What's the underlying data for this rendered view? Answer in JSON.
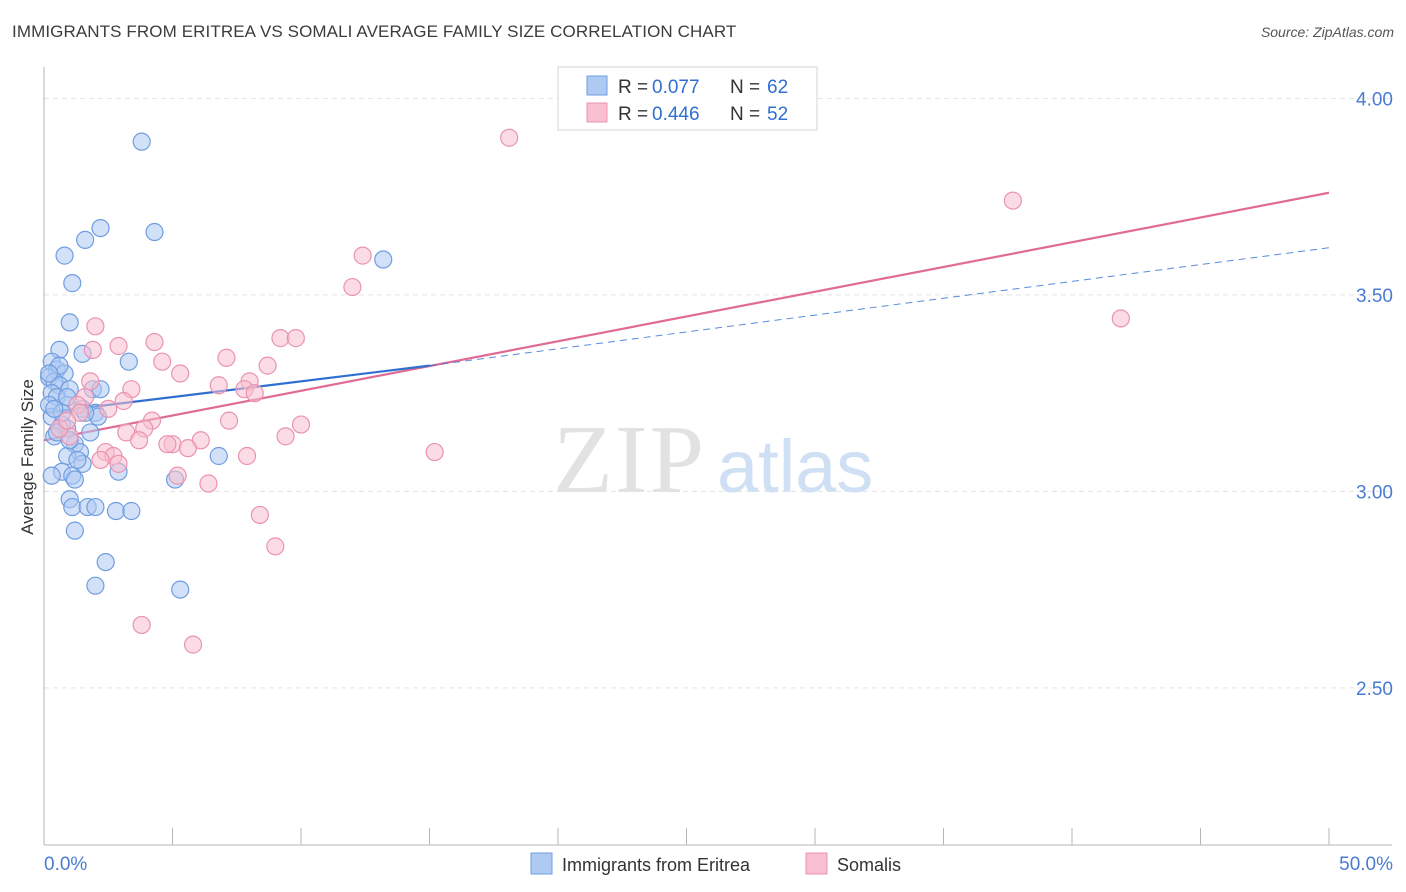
{
  "title": "IMMIGRANTS FROM ERITREA VS SOMALI AVERAGE FAMILY SIZE CORRELATION CHART",
  "source": "Source: ZipAtlas.com",
  "watermark": {
    "zip": "ZIP",
    "atlas": "atlas"
  },
  "colors": {
    "blue_fill": "#aec9f2",
    "blue_stroke": "#6f9ee0",
    "blue_line": "#2f6fd1",
    "pink_fill": "#f7bfd0",
    "pink_stroke": "#ea93b0",
    "pink_line": "#e06b93",
    "value_text": "#2f6fd1",
    "grid": "#e3e3e3"
  },
  "legend": [
    {
      "r_label": "R = ",
      "r_value": "0.077",
      "n_label": "N = ",
      "n_value": "62"
    },
    {
      "r_label": "R = ",
      "r_value": "0.446",
      "n_label": "N = ",
      "n_value": "52"
    }
  ],
  "chart_data": {
    "type": "scatter",
    "title": "IMMIGRANTS FROM ERITREA VS SOMALI AVERAGE FAMILY SIZE CORRELATION CHART",
    "xlabel": "",
    "ylabel": "Average Family Size",
    "xlim": [
      0,
      50
    ],
    "ylim": [
      2.1,
      4.08
    ],
    "x_tick_labels": [
      "0.0%",
      "50.0%"
    ],
    "y_ticks": [
      2.5,
      3.0,
      3.5,
      4.0
    ],
    "y_tick_labels": [
      "2.50",
      "3.00",
      "3.50",
      "4.00"
    ],
    "grid": true,
    "legend_position": "top-center",
    "series": [
      {
        "name": "Immigrants from Eritrea",
        "color": "blue",
        "trend": {
          "x": [
            0.0,
            15.0
          ],
          "y": [
            3.2,
            3.32
          ],
          "extension": {
            "x": [
              15.0,
              50.0
            ],
            "y": [
              3.32,
              3.62
            ]
          }
        },
        "points": [
          [
            3.8,
            3.89
          ],
          [
            4.3,
            3.66
          ],
          [
            2.2,
            3.67
          ],
          [
            1.6,
            3.64
          ],
          [
            0.8,
            3.6
          ],
          [
            13.2,
            3.59
          ],
          [
            1.1,
            3.53
          ],
          [
            1.0,
            3.43
          ],
          [
            0.6,
            3.36
          ],
          [
            1.5,
            3.35
          ],
          [
            0.3,
            3.33
          ],
          [
            3.3,
            3.33
          ],
          [
            0.5,
            3.31
          ],
          [
            0.8,
            3.3
          ],
          [
            0.2,
            3.29
          ],
          [
            0.4,
            3.28
          ],
          [
            0.6,
            3.27
          ],
          [
            1.0,
            3.26
          ],
          [
            1.9,
            3.26
          ],
          [
            0.3,
            3.25
          ],
          [
            0.5,
            3.24
          ],
          [
            0.2,
            3.22
          ],
          [
            0.9,
            3.22
          ],
          [
            1.5,
            3.21
          ],
          [
            2.0,
            3.2
          ],
          [
            0.3,
            3.19
          ],
          [
            2.1,
            3.19
          ],
          [
            0.7,
            3.17
          ],
          [
            0.9,
            3.16
          ],
          [
            1.8,
            3.15
          ],
          [
            0.4,
            3.14
          ],
          [
            1.2,
            3.12
          ],
          [
            1.4,
            3.1
          ],
          [
            0.9,
            3.09
          ],
          [
            1.5,
            3.07
          ],
          [
            6.8,
            3.09
          ],
          [
            0.7,
            3.05
          ],
          [
            2.9,
            3.05
          ],
          [
            1.1,
            3.04
          ],
          [
            0.3,
            3.04
          ],
          [
            5.1,
            3.03
          ],
          [
            1.2,
            3.03
          ],
          [
            1.0,
            2.98
          ],
          [
            1.1,
            2.96
          ],
          [
            1.7,
            2.96
          ],
          [
            2.0,
            2.96
          ],
          [
            2.8,
            2.95
          ],
          [
            3.4,
            2.95
          ],
          [
            1.2,
            2.9
          ],
          [
            2.4,
            2.82
          ],
          [
            2.0,
            2.76
          ],
          [
            5.3,
            2.75
          ],
          [
            0.6,
            3.32
          ],
          [
            0.2,
            3.3
          ],
          [
            0.7,
            3.2
          ],
          [
            1.3,
            3.08
          ],
          [
            0.5,
            3.15
          ],
          [
            0.9,
            3.24
          ],
          [
            1.6,
            3.2
          ],
          [
            2.2,
            3.26
          ],
          [
            0.4,
            3.21
          ],
          [
            1.0,
            3.13
          ]
        ]
      },
      {
        "name": "Somalis",
        "color": "pink",
        "trend": {
          "x": [
            0.0,
            50.0
          ],
          "y": [
            3.13,
            3.76
          ]
        },
        "points": [
          [
            18.1,
            3.9
          ],
          [
            37.7,
            3.74
          ],
          [
            12.4,
            3.6
          ],
          [
            12.0,
            3.52
          ],
          [
            41.9,
            3.44
          ],
          [
            2.0,
            3.42
          ],
          [
            9.2,
            3.39
          ],
          [
            9.8,
            3.39
          ],
          [
            4.3,
            3.38
          ],
          [
            2.9,
            3.37
          ],
          [
            1.9,
            3.36
          ],
          [
            7.1,
            3.34
          ],
          [
            4.6,
            3.33
          ],
          [
            8.7,
            3.32
          ],
          [
            5.3,
            3.3
          ],
          [
            8.0,
            3.28
          ],
          [
            3.4,
            3.26
          ],
          [
            7.8,
            3.26
          ],
          [
            8.2,
            3.25
          ],
          [
            1.6,
            3.24
          ],
          [
            3.1,
            3.23
          ],
          [
            1.3,
            3.22
          ],
          [
            7.2,
            3.18
          ],
          [
            4.2,
            3.18
          ],
          [
            3.9,
            3.16
          ],
          [
            3.2,
            3.15
          ],
          [
            1.0,
            3.14
          ],
          [
            9.4,
            3.14
          ],
          [
            3.7,
            3.13
          ],
          [
            0.6,
            3.16
          ],
          [
            10.0,
            3.17
          ],
          [
            6.1,
            3.13
          ],
          [
            5.0,
            3.12
          ],
          [
            5.6,
            3.11
          ],
          [
            15.2,
            3.1
          ],
          [
            2.4,
            3.1
          ],
          [
            2.7,
            3.09
          ],
          [
            7.9,
            3.09
          ],
          [
            2.2,
            3.08
          ],
          [
            2.9,
            3.07
          ],
          [
            5.2,
            3.04
          ],
          [
            6.4,
            3.02
          ],
          [
            8.4,
            2.94
          ],
          [
            9.0,
            2.86
          ],
          [
            3.8,
            2.66
          ],
          [
            5.8,
            2.61
          ],
          [
            1.4,
            3.2
          ],
          [
            0.9,
            3.18
          ],
          [
            2.5,
            3.21
          ],
          [
            6.8,
            3.27
          ],
          [
            4.8,
            3.12
          ],
          [
            1.8,
            3.28
          ]
        ]
      }
    ]
  },
  "bottom_legend": [
    "Immigrants from Eritrea",
    "Somalis"
  ]
}
